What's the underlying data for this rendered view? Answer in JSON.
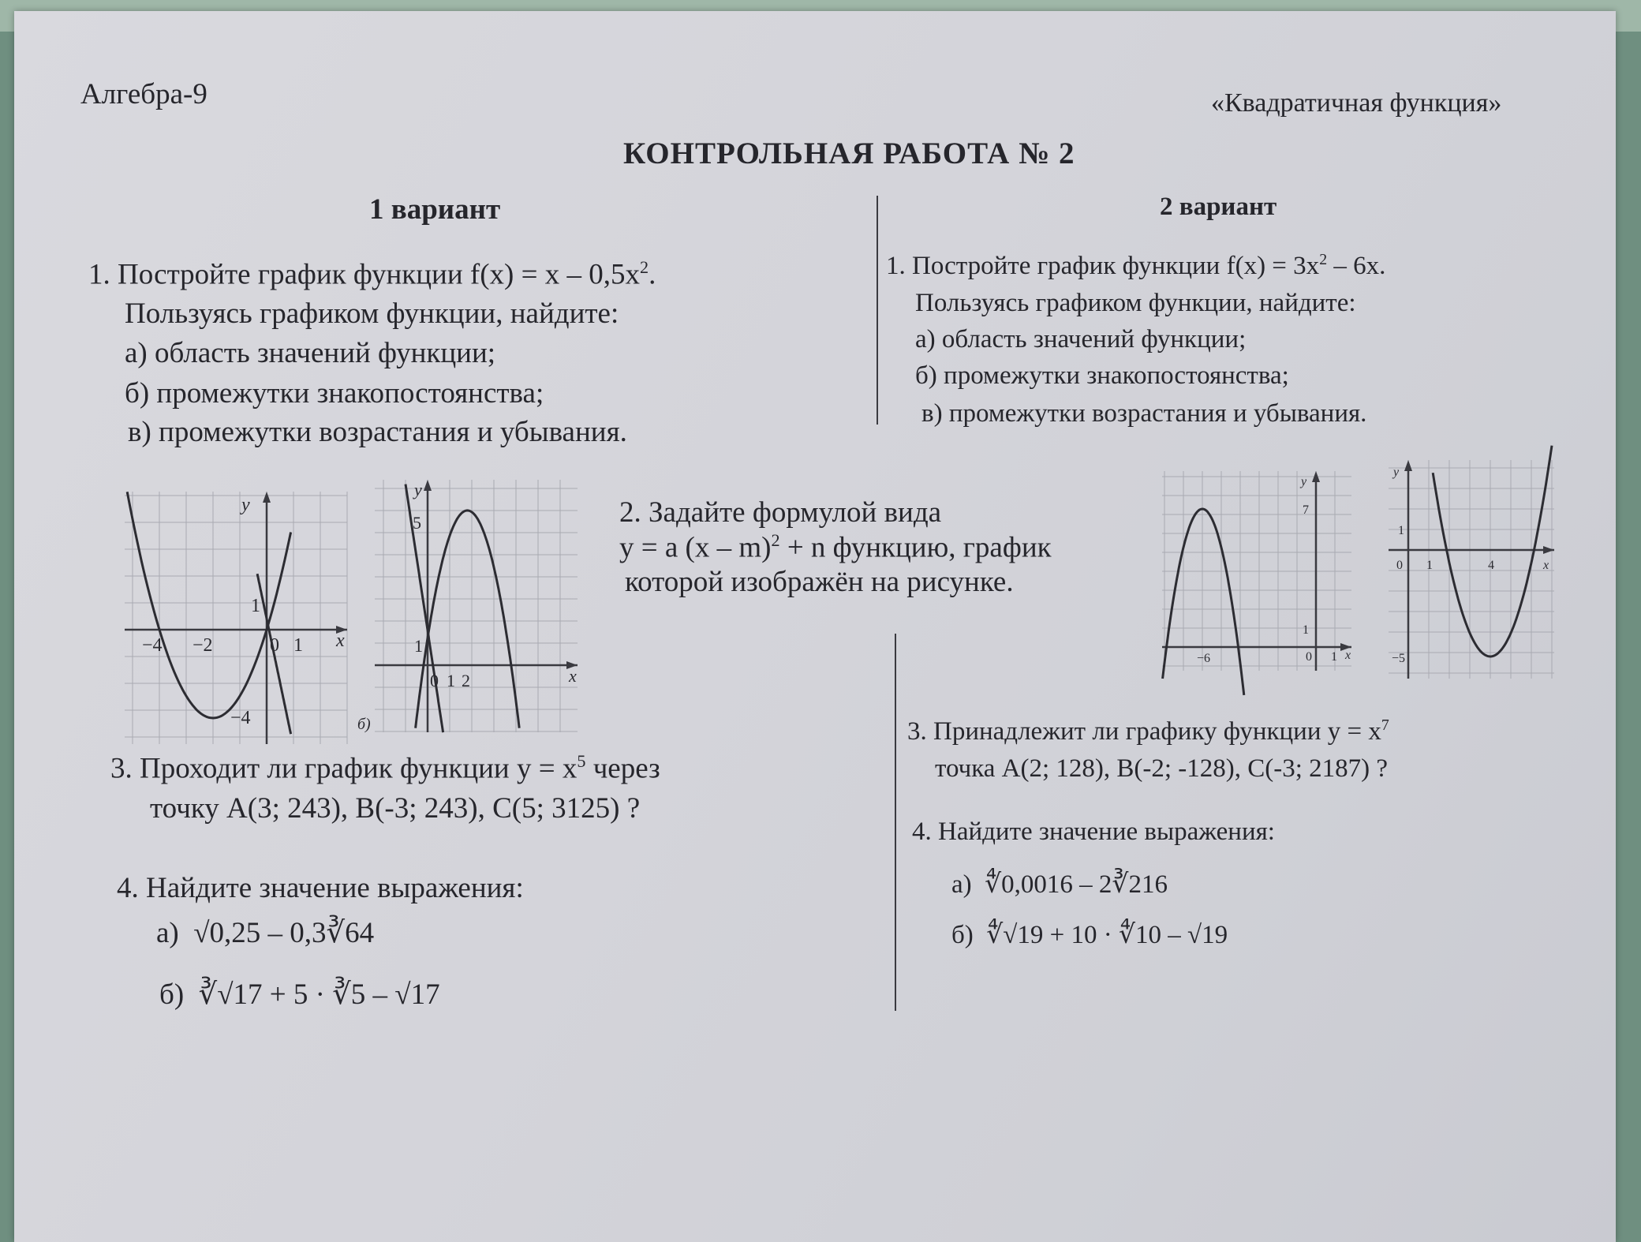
{
  "header": {
    "subject": "Алгебра-9",
    "topic": "«Квадратичная функция»",
    "title": "КОНТРОЛЬНАЯ РАБОТА № 2"
  },
  "variant1": {
    "heading": "1 вариант",
    "q1": {
      "line1": "1. Постройте  график функции  f(x) = x – 0,5x",
      "line1_sup": "2",
      "line1_end": ".",
      "line2": "Пользуясь графиком функции,  найдите:",
      "a": "а)  область  значений  функции;",
      "b": "б)  промежутки  знакопостоянства;",
      "c": "в)  промежутки возрастания и убывания."
    },
    "graph_a": {
      "y": "y",
      "x": "x",
      "one_y": "1",
      "minus4x": "−4",
      "minus2": "−2",
      "zero": "0",
      "one_x": "1",
      "minus4y": "−4"
    },
    "graph_b": {
      "y": "y",
      "x": "x",
      "five": "5",
      "one_y": "1",
      "zero": "0",
      "one_x": "1",
      "two": "2",
      "label": "б)"
    },
    "q2": {
      "line1": "2.  Задайте  формулой  вида",
      "line2a": "y = a (x – m)",
      "line2_sup": "2",
      "line2b": " + n  функцию, график",
      "line3": "которой изображён на рисунке."
    },
    "q3": {
      "line1a": "3. Проходит ли график функции y = x",
      "line1_sup": "5",
      "line1b": "  через",
      "line2": "точку  A(3; 243),  B(-3; 243),  C(5; 3125) ?"
    },
    "q4": {
      "heading": "4. Найдите значение выражения:",
      "a_label": "а)",
      "a_expr": "√0,25 – 0,3∛64",
      "b_label": "б)",
      "b_expr": "∛√17 + 5 · ∛5 – √17"
    }
  },
  "variant2": {
    "heading": "2 вариант",
    "q1": {
      "line1": "1. Постройте  график функции  f(x) = 3x",
      "line1_sup": "2",
      "line1_end": " – 6x.",
      "line2": "Пользуясь графиком функции,  найдите:",
      "a": "а) область  значений  функции;",
      "b": "б)  промежутки  знакопостоянства;",
      "c": "в)  промежутки возрастания и убывания."
    },
    "graph_a": {
      "y": "y",
      "x": "x",
      "seven": "7",
      "one_y": "1",
      "minus6": "−6",
      "zero": "0",
      "one_x": "1"
    },
    "graph_b": {
      "y": "y",
      "x": "x",
      "one_y": "1",
      "zero": "0",
      "one_x": "1",
      "four": "4",
      "minus5": "−5"
    },
    "q3": {
      "line1a": "3. Принадлежит ли графику функции y = x",
      "line1_sup": "7",
      "line2": "точка  A(2; 128),  B(-2; -128),  C(-3; 2187) ?"
    },
    "q4": {
      "heading": "4. Найдите значение выражения:",
      "a_label": "а)",
      "a_expr": "∜0,0016 – 2∛216",
      "b_label": "б)",
      "b_expr": "∜√19 + 10 · ∜10 – √19"
    }
  }
}
